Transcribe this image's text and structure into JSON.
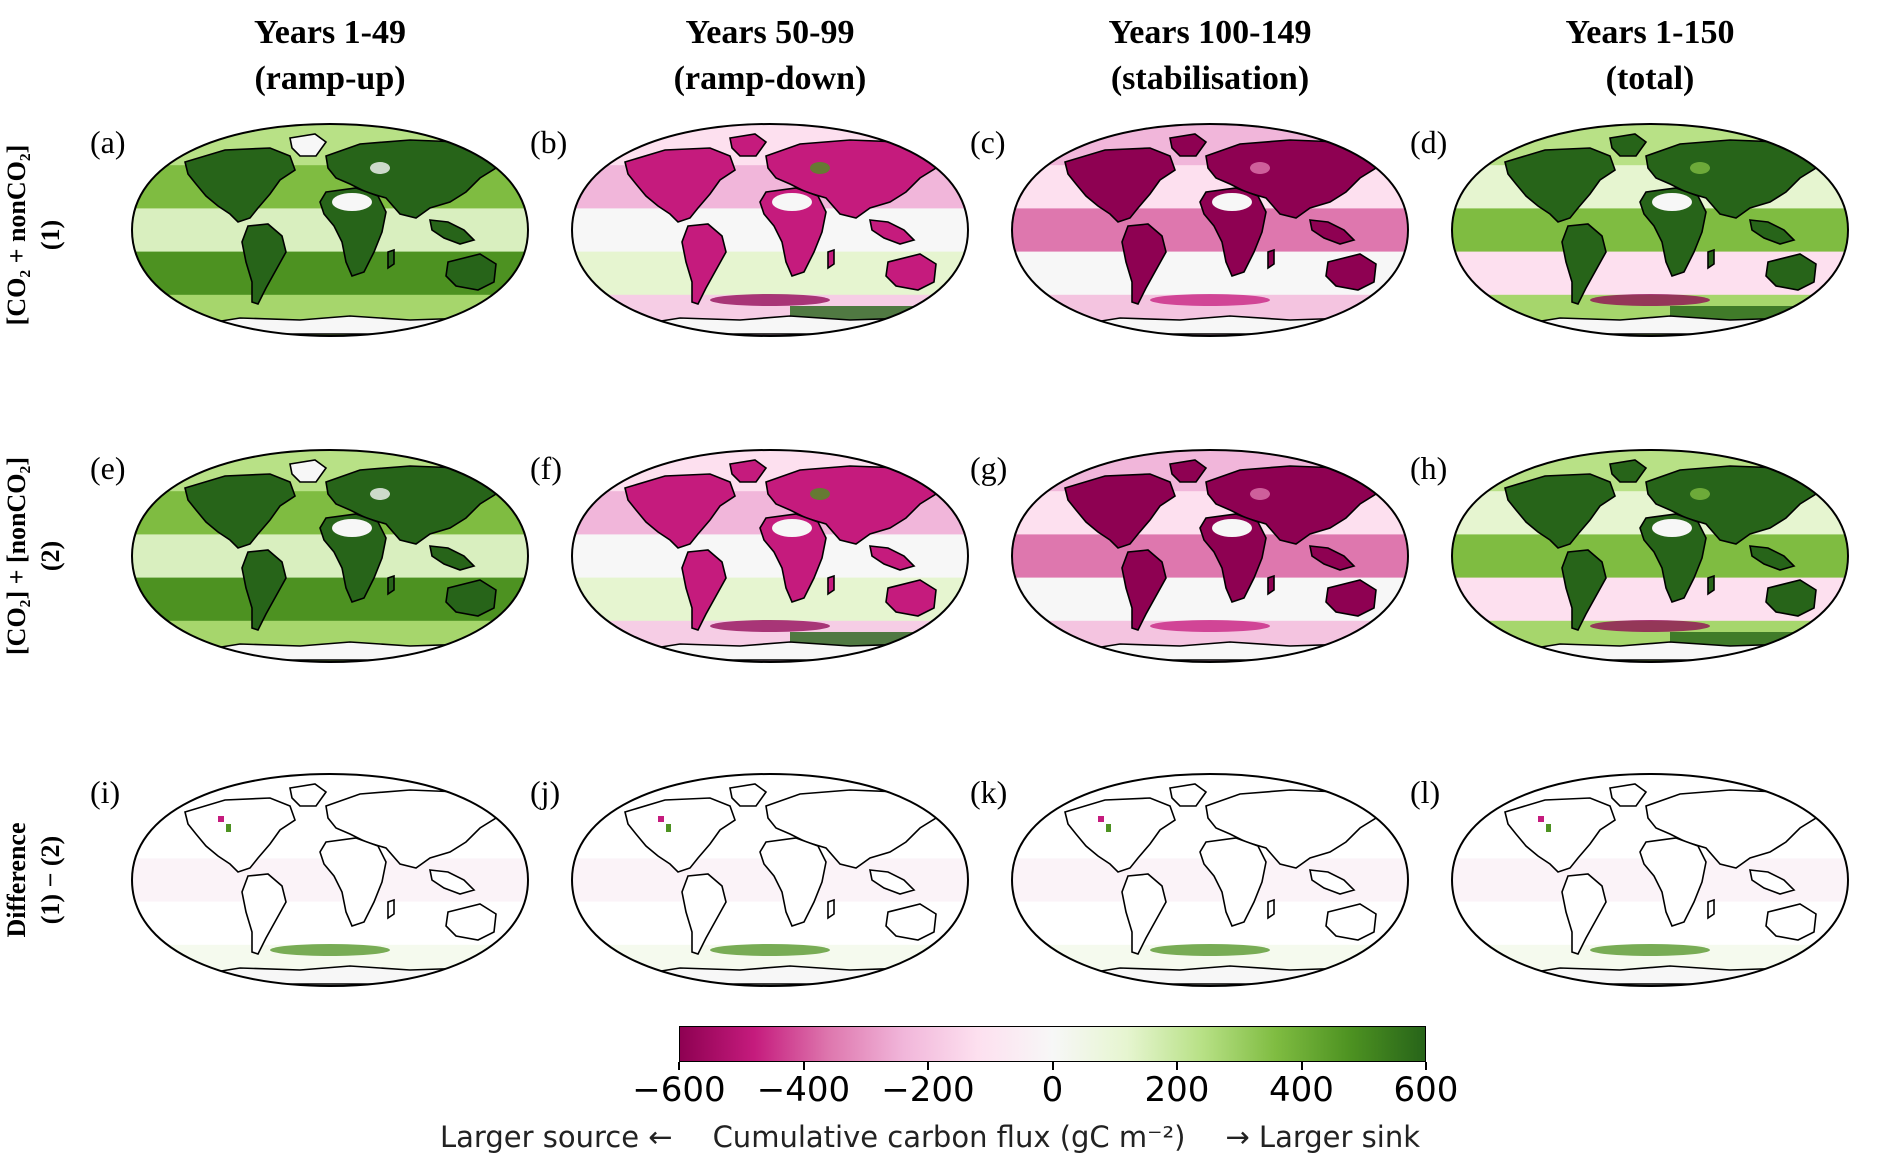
{
  "columns": [
    {
      "line1": "Years 1-49",
      "line2": "(ramp-up)"
    },
    {
      "line1": "Years 50-99",
      "line2": "(ramp-down)"
    },
    {
      "line1": "Years 100-149",
      "line2": "(stabilisation)"
    },
    {
      "line1": "Years 1-150",
      "line2": "(total)"
    }
  ],
  "rows": [
    {
      "line1": "[CO₂ + nonCO₂]",
      "line2": "(1)",
      "panels": [
        "(a)",
        "(b)",
        "(c)",
        "(d)"
      ],
      "style": [
        "green-strong",
        "mixed-pink",
        "pink-strong",
        "green-mixed"
      ]
    },
    {
      "line1": "[CO₂] + [nonCO₂]",
      "line2": "(2)",
      "panels": [
        "(e)",
        "(f)",
        "(g)",
        "(h)"
      ],
      "style": [
        "green-strong",
        "mixed-pink",
        "pink-strong",
        "green-mixed"
      ]
    },
    {
      "line1": "Difference",
      "line2": "(1) − (2)",
      "panels": [
        "(i)",
        "(j)",
        "(k)",
        "(l)"
      ],
      "style": [
        "diff",
        "diff",
        "diff",
        "diff"
      ]
    }
  ],
  "colorbar": {
    "ticks": [
      "−600",
      "−400",
      "−200",
      "0",
      "200",
      "400",
      "600"
    ],
    "range": [
      -600,
      600
    ],
    "colormap": [
      "#8e0152",
      "#c51b7d",
      "#de77ae",
      "#f1b6da",
      "#fde0ef",
      "#f7f7f7",
      "#e6f5d0",
      "#b8e186",
      "#7fbc41",
      "#4d9221",
      "#276419"
    ],
    "caption_left": "Larger source ←",
    "caption_center": "Cumulative carbon flux (gC m⁻²)",
    "caption_right": "→ Larger sink"
  }
}
